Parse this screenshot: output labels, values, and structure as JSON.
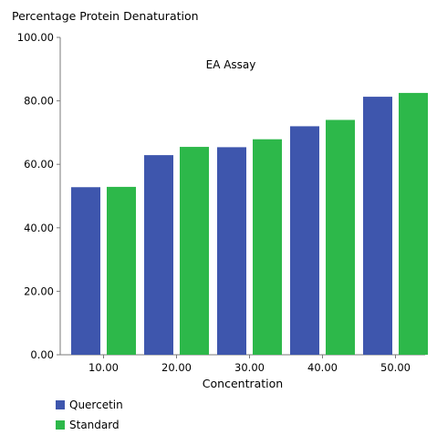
{
  "chart_data": {
    "type": "bar",
    "ytitle": "Percentage Protein Denaturation",
    "annotation": "EA Assay",
    "xlabel": "Concentration",
    "categories": [
      "10.00",
      "20.00",
      "30.00",
      "40.00",
      "50.00"
    ],
    "series": [
      {
        "name": "Quercetin",
        "color": "#3e56ad",
        "values": [
          52.8,
          62.9,
          65.4,
          72.0,
          81.3
        ]
      },
      {
        "name": "Standard",
        "color": "#2db84a",
        "values": [
          52.9,
          65.5,
          67.9,
          74.0,
          82.5
        ]
      }
    ],
    "ylim": [
      0,
      100
    ],
    "yticks": [
      "0.00",
      "20.00",
      "40.00",
      "60.00",
      "80.00",
      "100.00"
    ],
    "grid": false,
    "legend_position": "bottom-left"
  }
}
